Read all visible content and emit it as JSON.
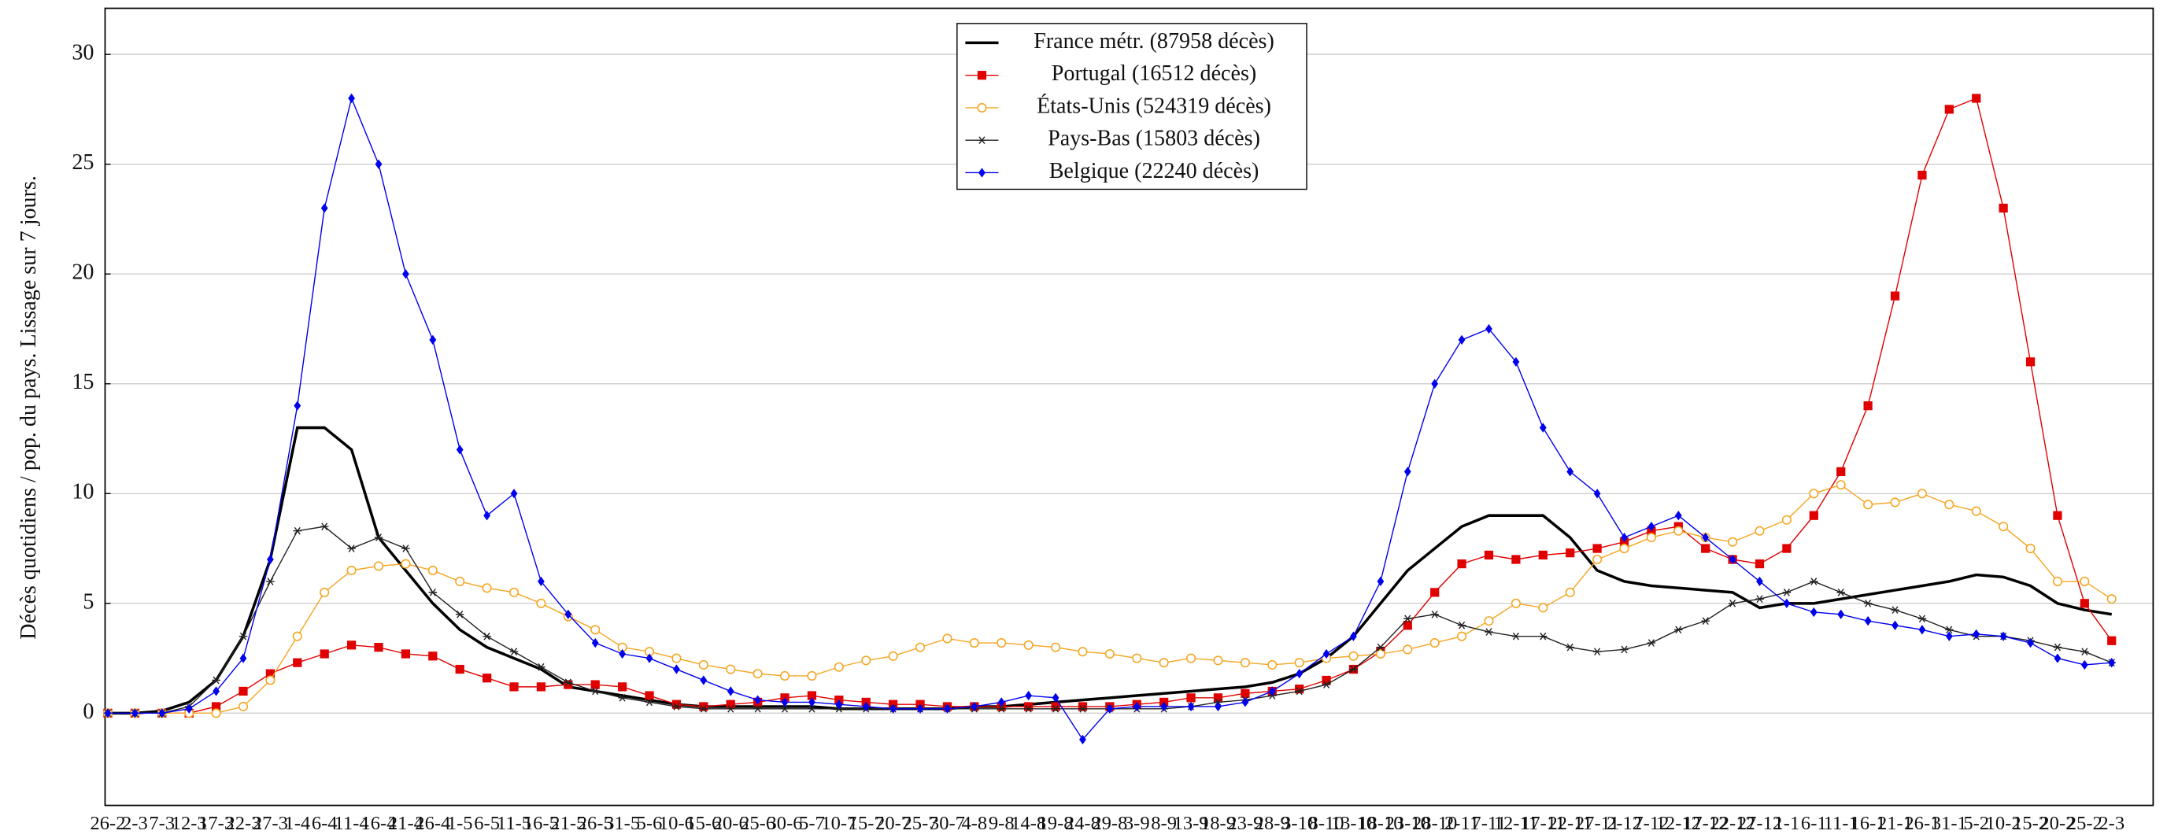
{
  "chart_data": {
    "type": "line",
    "ylabel": "Décès quotidiens / pop. du pays. Lissage sur 7 jours.",
    "categories": [
      "26-2",
      "2-3",
      "7-3",
      "12-3",
      "17-3",
      "22-3",
      "27-3",
      "1-4",
      "6-4",
      "11-4",
      "16-4",
      "21-4",
      "26-4",
      "1-5",
      "6-5",
      "11-5",
      "16-5",
      "21-5",
      "26-5",
      "31-5",
      "5-6",
      "10-6",
      "15-6",
      "20-6",
      "25-6",
      "30-6",
      "5-7",
      "10-7",
      "15-7",
      "20-7",
      "25-7",
      "30-7",
      "4-8",
      "9-8",
      "14-8",
      "19-8",
      "24-8",
      "29-8",
      "3-9",
      "8-9",
      "13-9",
      "18-9",
      "23-9",
      "28-9",
      "3-10",
      "8-10",
      "13-10",
      "18-10",
      "23-10",
      "28-10",
      "2-11",
      "7-11",
      "12-11",
      "17-11",
      "22-11",
      "27-11",
      "2-12",
      "7-12",
      "12-12",
      "17-12",
      "22-12",
      "27-12",
      "1-1",
      "6-1",
      "11-1",
      "16-1",
      "21-1",
      "26-1",
      "31-1",
      "5-2",
      "10-2",
      "15-2",
      "20-2",
      "25-2",
      "2-3"
    ],
    "series": [
      {
        "name": "France métr. (87958 décès)",
        "color": "#000000",
        "marker": "none",
        "values": [
          0,
          0,
          0.1,
          0.5,
          1.5,
          3.5,
          7,
          13,
          13,
          12,
          8,
          6.5,
          5,
          3.8,
          3,
          2.5,
          2,
          1.2,
          1,
          0.8,
          0.6,
          0.4,
          0.3,
          0.3,
          0.3,
          0.3,
          0.3,
          0.2,
          0.2,
          0.2,
          0.2,
          0.2,
          0.3,
          0.3,
          0.4,
          0.5,
          0.6,
          0.7,
          0.8,
          0.9,
          1,
          1.1,
          1.2,
          1.4,
          1.8,
          2.5,
          3.5,
          5,
          6.5,
          7.5,
          8.5,
          9,
          9,
          9,
          8,
          6.5,
          6,
          5.8,
          5.7,
          5.6,
          5.5,
          4.8,
          5,
          5,
          5.2,
          5.4,
          5.6,
          5.8,
          6,
          6.3,
          6.2,
          5.8,
          5,
          4.7,
          4.5
        ]
      },
      {
        "name": "Portugal (16512 décès)",
        "color": "#e00000",
        "marker": "square",
        "values": [
          0,
          0,
          0,
          0,
          0.3,
          1,
          1.8,
          2.3,
          2.7,
          3.1,
          3,
          2.7,
          2.6,
          2,
          1.6,
          1.2,
          1.2,
          1.3,
          1.3,
          1.2,
          0.8,
          0.4,
          0.3,
          0.4,
          0.5,
          0.7,
          0.8,
          0.6,
          0.5,
          0.4,
          0.4,
          0.3,
          0.3,
          0.3,
          0.3,
          0.3,
          0.3,
          0.3,
          0.4,
          0.5,
          0.7,
          0.7,
          0.9,
          1,
          1.1,
          1.5,
          2,
          2.8,
          4,
          5.5,
          6.8,
          7.2,
          7,
          7.2,
          7.3,
          7.5,
          7.8,
          8.3,
          8.5,
          7.5,
          7,
          6.8,
          7.5,
          9,
          11,
          14,
          19,
          24.5,
          27.5,
          28,
          23,
          16,
          9,
          5,
          3.3
        ]
      },
      {
        "name": "États-Unis (524319 décès)",
        "color": "#f5a623",
        "marker": "circle",
        "values": [
          0,
          0,
          0,
          0,
          0,
          0.3,
          1.5,
          3.5,
          5.5,
          6.5,
          6.7,
          6.8,
          6.5,
          6,
          5.7,
          5.5,
          5,
          4.4,
          3.8,
          3,
          2.8,
          2.5,
          2.2,
          2,
          1.8,
          1.7,
          1.7,
          2.1,
          2.4,
          2.6,
          3,
          3.4,
          3.2,
          3.2,
          3.1,
          3,
          2.8,
          2.7,
          2.5,
          2.3,
          2.5,
          2.4,
          2.3,
          2.2,
          2.3,
          2.5,
          2.6,
          2.7,
          2.9,
          3.2,
          3.5,
          4.2,
          5,
          4.8,
          5.5,
          7,
          7.5,
          8,
          8.3,
          8,
          7.8,
          8.3,
          8.8,
          10,
          10.4,
          9.5,
          9.6,
          10,
          9.5,
          9.2,
          8.5,
          7.5,
          6,
          6,
          5.2
        ]
      },
      {
        "name": "Pays-Bas (15803 décès)",
        "color": "#222222",
        "marker": "star",
        "values": [
          0,
          0,
          0,
          0.3,
          1.5,
          3.5,
          6,
          8.3,
          8.5,
          7.5,
          8,
          7.5,
          5.5,
          4.5,
          3.5,
          2.8,
          2.1,
          1.4,
          1,
          0.7,
          0.5,
          0.3,
          0.2,
          0.2,
          0.2,
          0.2,
          0.2,
          0.2,
          0.2,
          0.2,
          0.2,
          0.2,
          0.2,
          0.2,
          0.2,
          0.2,
          0.2,
          0.2,
          0.2,
          0.2,
          0.3,
          0.5,
          0.6,
          0.8,
          1,
          1.3,
          2,
          3,
          4.3,
          4.5,
          4,
          3.7,
          3.5,
          3.5,
          3,
          2.8,
          2.9,
          3.2,
          3.8,
          4.2,
          5,
          5.2,
          5.5,
          6,
          5.5,
          5,
          4.7,
          4.3,
          3.8,
          3.5,
          3.5,
          3.3,
          3,
          2.8,
          2.3
        ]
      },
      {
        "name": "Belgique (22240 décès)",
        "color": "#0000ee",
        "marker": "diamond",
        "values": [
          0,
          0,
          0,
          0.2,
          1,
          2.5,
          7,
          14,
          23,
          28,
          25,
          20,
          17,
          12,
          9,
          10,
          6,
          4.5,
          3.2,
          2.7,
          2.5,
          2,
          1.5,
          1,
          0.6,
          0.5,
          0.5,
          0.4,
          0.3,
          0.2,
          0.2,
          0.2,
          0.3,
          0.5,
          0.8,
          0.7,
          -1.2,
          0.2,
          0.3,
          0.3,
          0.3,
          0.3,
          0.5,
          1,
          1.8,
          2.7,
          3.5,
          6,
          11,
          15,
          17,
          17.5,
          16,
          13,
          11,
          10,
          8,
          8.5,
          9,
          8,
          7,
          6,
          5,
          4.6,
          4.5,
          4.2,
          4,
          3.8,
          3.5,
          3.6,
          3.5,
          3.2,
          2.5,
          2.2,
          2.3
        ]
      }
    ],
    "ylim": [
      -4.2,
      32.1
    ],
    "yticks": [
      0,
      5,
      10,
      15,
      20,
      25,
      30
    ],
    "grid": true,
    "legend": "upper center"
  }
}
